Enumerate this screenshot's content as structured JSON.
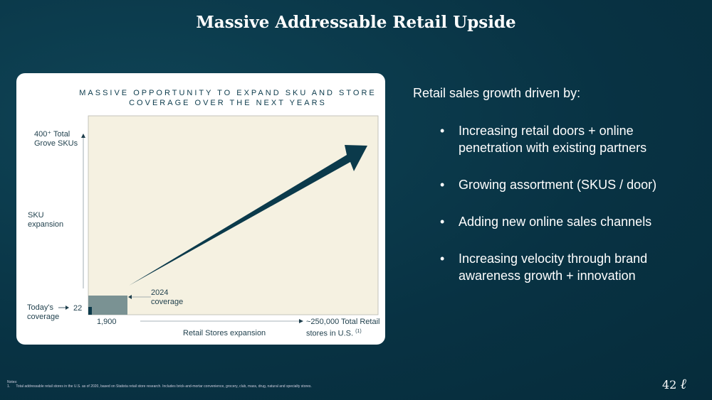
{
  "title": "Massive Addressable Retail Upside",
  "diagram": {
    "title_line1": "MASSIVE OPPORTUNITY TO EXPAND SKU AND STORE",
    "title_line2": "COVERAGE OVER THE NEXT YEARS",
    "y_top_label_1": "400⁺ Total",
    "y_top_label_2": "Grove SKUs",
    "y_axis_label_1": "SKU",
    "y_axis_label_2": "expansion",
    "today_label_1": "Today's",
    "today_label_2": "coverage",
    "today_value": "22",
    "coverage_2024_1": "2024",
    "coverage_2024_2": "coverage",
    "x_start_label": "1,900",
    "x_axis_label": "Retail Stores expansion",
    "x_end_label_1": "~250,000 Total Retail",
    "x_end_label_2": "stores in U.S.",
    "footnote_ref": "(1)",
    "colors": {
      "plot_bg": "#f5f1e1",
      "arrow": "#0b3a4b",
      "box_2024": "#7a9293"
    }
  },
  "right": {
    "heading": "Retail sales growth driven by:",
    "bullets": [
      "Increasing retail doors + online penetration with existing partners",
      "Growing assortment (SKUS / door)",
      "Adding new online sales channels",
      "Increasing velocity through brand awareness growth + innovation"
    ]
  },
  "notes": {
    "heading": "Notes:",
    "items": [
      "1.      Total addressable retail stores in the U.S. as of 2020, based on Statista retail store research. Includes brick-and-mortar convenience, grocery, club, mass, drug, natural and specialty stores."
    ]
  },
  "page_number": "42",
  "logo": "g"
}
